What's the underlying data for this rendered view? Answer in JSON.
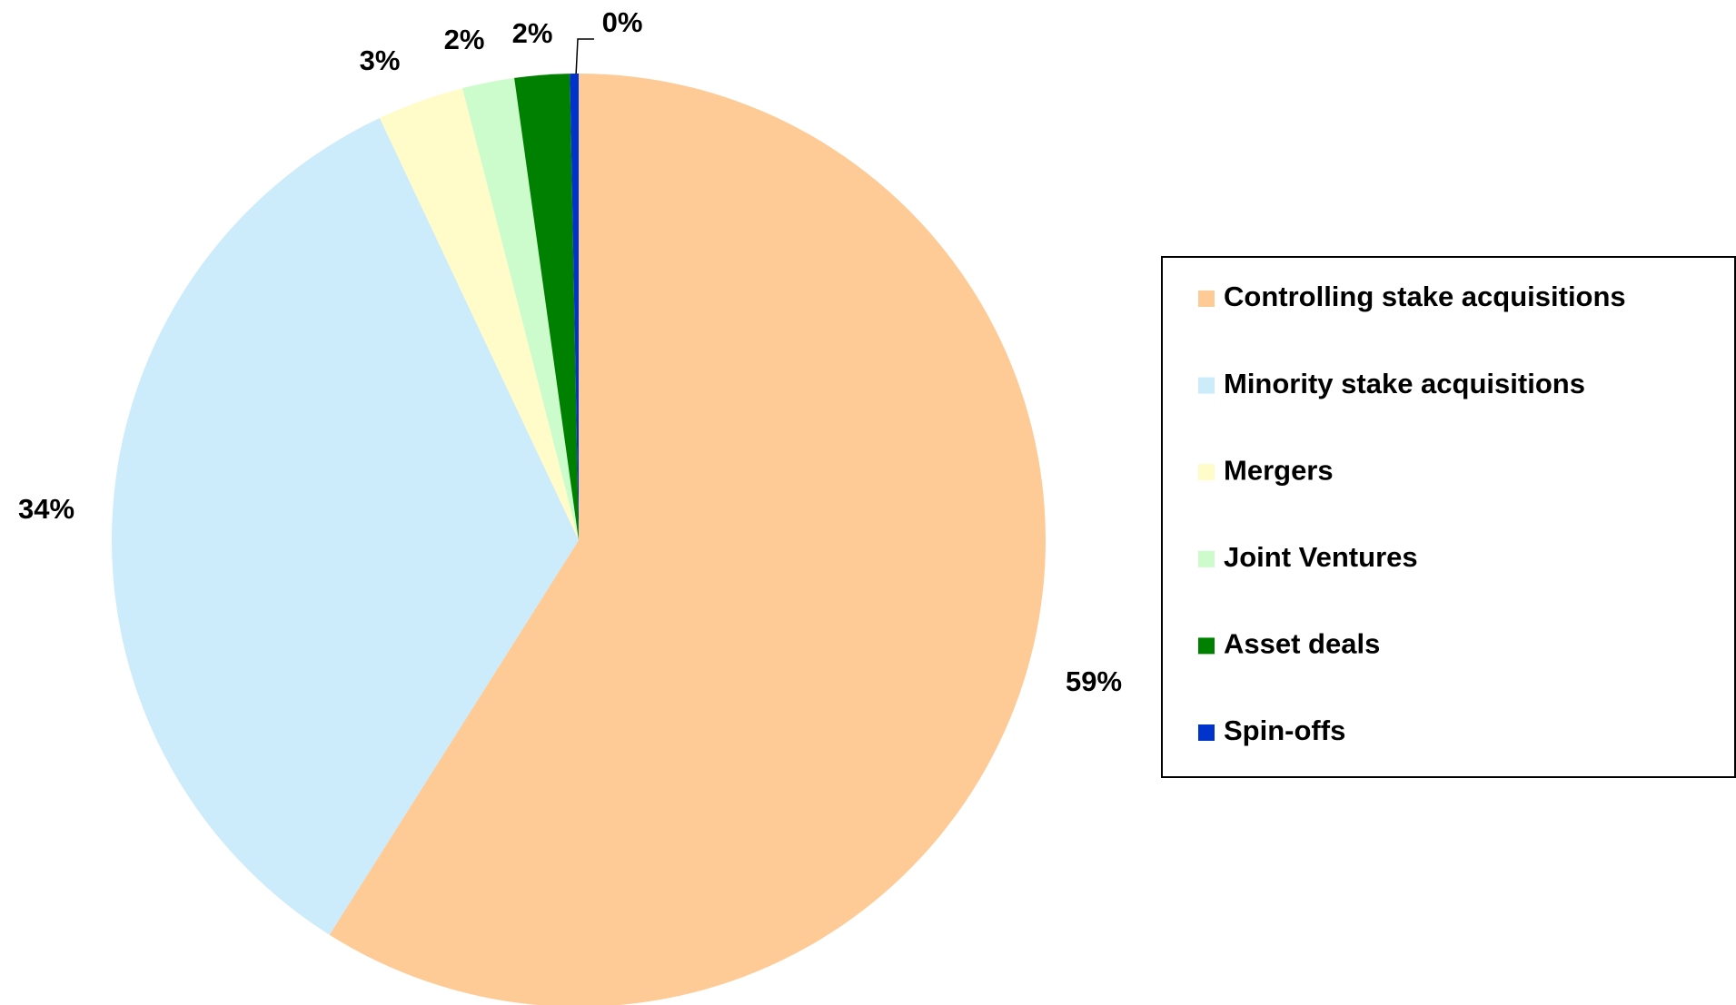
{
  "chart_data": {
    "type": "pie",
    "categories": [
      "Controlling stake acquisitions",
      "Minority stake acquisitions",
      "Mergers",
      "Joint Ventures",
      "Asset deals",
      "Spin-offs"
    ],
    "values": [
      58.9,
      34.0,
      3.0,
      1.8,
      1.9,
      0.3
    ],
    "value_labels": [
      "59%",
      "34%",
      "3%",
      "2%",
      "2%",
      "0%"
    ],
    "colors": [
      "#fecb96",
      "#ccebfb",
      "#fffcc9",
      "#ccfccc",
      "#008000",
      "#0033cc"
    ],
    "legend": "right"
  }
}
